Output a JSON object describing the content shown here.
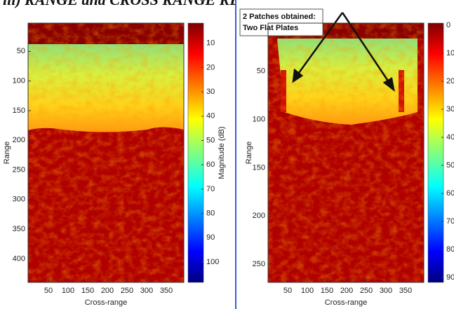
{
  "title": "iii) RANGE and CROSS RANGE RESOLUTION",
  "annotation": [
    "2 Patches obtained:",
    "Two Flat Plates"
  ],
  "panels": [
    {
      "y_label": "Range",
      "x_label": "Cross-range",
      "colorbar_label": "Magnitude (dB)",
      "x_ticks": [
        50,
        100,
        150,
        200,
        250,
        300,
        350
      ],
      "y_ticks": [
        50,
        100,
        150,
        200,
        250,
        300,
        350,
        400
      ],
      "colorbar_ticks": [
        10,
        20,
        30,
        40,
        50,
        60,
        70,
        80,
        90,
        100
      ]
    },
    {
      "y_label": "Range",
      "x_label": "Cross-range",
      "x_ticks": [
        50,
        100,
        150,
        200,
        250,
        300,
        350
      ],
      "y_ticks": [
        50,
        100,
        150,
        200,
        250
      ],
      "colorbar_ticks": [
        0,
        10,
        20,
        30,
        40,
        50,
        60,
        70,
        80,
        90
      ]
    }
  ]
}
